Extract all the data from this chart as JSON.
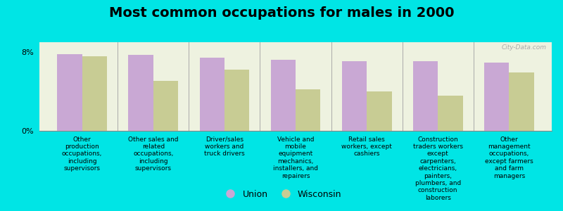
{
  "title": "Most common occupations for males in 2000",
  "categories": [
    "Other\nproduction\noccupations,\nincluding\nsupervisors",
    "Other sales and\nrelated\noccupations,\nincluding\nsupervisors",
    "Driver/sales\nworkers and\ntruck drivers",
    "Vehicle and\nmobile\nequipment\nmechanics,\ninstallers, and\nrepairers",
    "Retail sales\nworkers, except\ncashiers",
    "Construction\ntraders workers\nexcept\ncarpenters,\nelectricians,\npainters,\nplumbers, and\nconstruction\nlaborers",
    "Other\nmanagement\noccupations,\nexcept farmers\nand farm\nmanagers"
  ],
  "union_values": [
    7.8,
    7.7,
    7.4,
    7.2,
    7.1,
    7.1,
    6.9
  ],
  "wisconsin_values": [
    7.6,
    5.1,
    6.2,
    4.2,
    4.0,
    3.6,
    5.9
  ],
  "union_color": "#c9a8d4",
  "wisconsin_color": "#c8cc94",
  "background_color": "#00e5e5",
  "plot_bg_color": "#eef2e0",
  "ylim": [
    0,
    9
  ],
  "yticks": [
    0,
    8
  ],
  "ytick_labels": [
    "0%",
    "8%"
  ],
  "bar_width": 0.35,
  "legend_union": "Union",
  "legend_wisconsin": "Wisconsin",
  "title_fontsize": 14,
  "watermark": "City-Data.com"
}
